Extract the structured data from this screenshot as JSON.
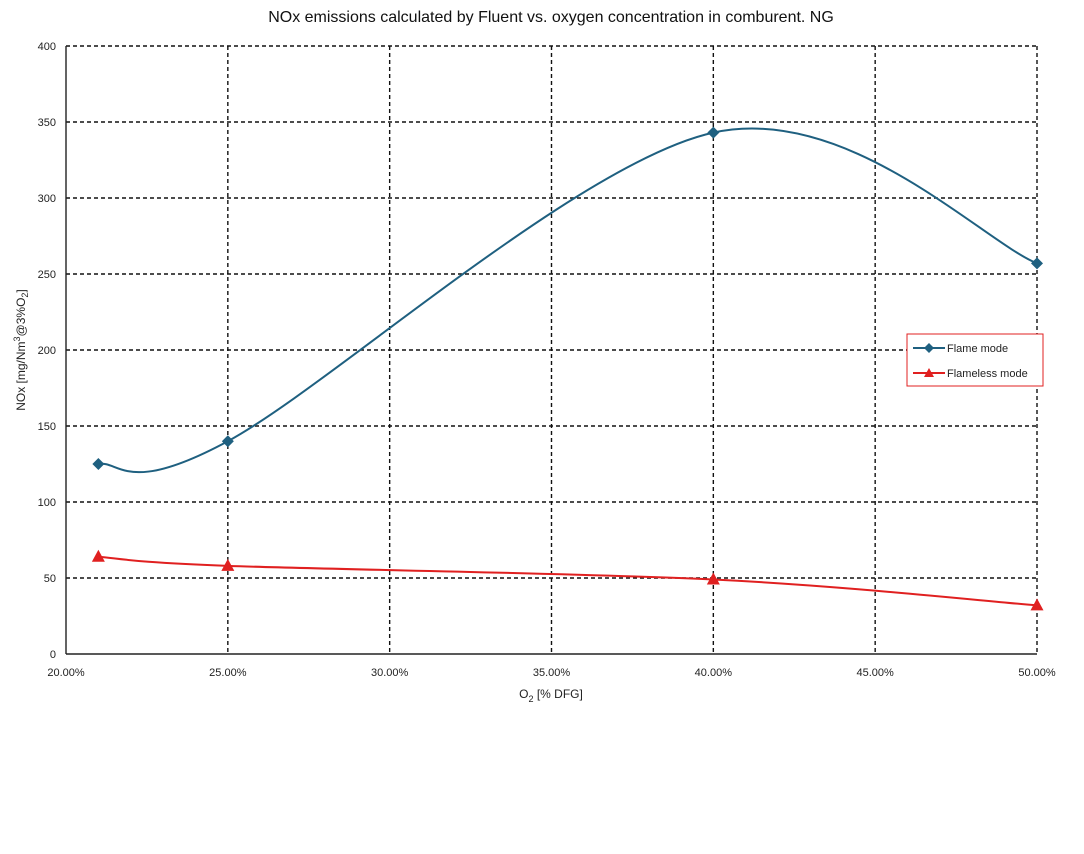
{
  "chart_data": {
    "type": "line",
    "title": "NOx emissions calculated by Fluent vs. oxygen concentration in comburent. NG",
    "xlabel": {
      "main": "O",
      "sub": "2",
      "rest": " [% DFG]"
    },
    "ylabel": {
      "p1": "NOx [mg/Nm",
      "sup": "3",
      "p2": "@3%O",
      "sub": "2",
      "p3": "]"
    },
    "xlim": [
      0.2,
      0.5
    ],
    "ylim": [
      0,
      400
    ],
    "x_ticks": [
      0.2,
      0.25,
      0.3,
      0.35,
      0.4,
      0.45,
      0.5
    ],
    "x_tick_labels": [
      "20.00%",
      "25.00%",
      "30.00%",
      "35.00%",
      "40.00%",
      "45.00%",
      "50.00%"
    ],
    "y_ticks": [
      0,
      50,
      100,
      150,
      200,
      250,
      300,
      350,
      400
    ],
    "y_tick_labels": [
      "0",
      "50",
      "100",
      "150",
      "200",
      "250",
      "300",
      "350",
      "400"
    ],
    "grid": true,
    "grid_style": "dashed",
    "legend_position": "right",
    "smooth": true,
    "series": [
      {
        "name": "Flame mode",
        "color": "#1f6080",
        "marker": "diamond",
        "x": [
          0.21,
          0.25,
          0.4,
          0.5
        ],
        "y": [
          125,
          140,
          343,
          257
        ]
      },
      {
        "name": "Flameless mode",
        "color": "#e02020",
        "marker": "triangle",
        "x": [
          0.21,
          0.25,
          0.4,
          0.5
        ],
        "y": [
          64,
          58,
          49,
          32
        ]
      }
    ]
  }
}
